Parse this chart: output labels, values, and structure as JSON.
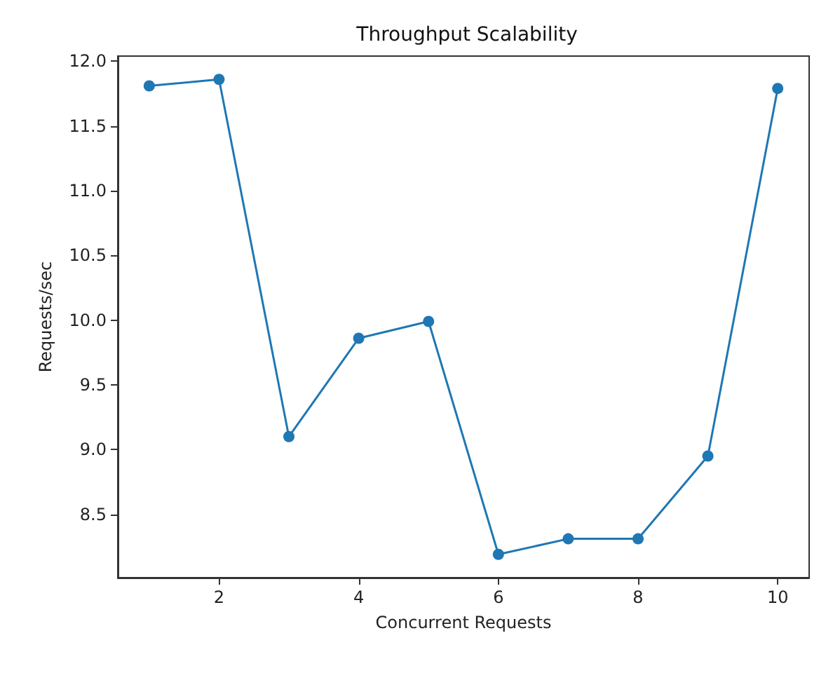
{
  "chart_data": {
    "type": "line",
    "title": "Throughput Scalability",
    "xlabel": "Concurrent Requests",
    "ylabel": "Requests/sec",
    "x": [
      1,
      2,
      3,
      4,
      5,
      6,
      7,
      8,
      9,
      10
    ],
    "series": [
      {
        "color": "#1f77b4",
        "values": [
          11.81,
          11.86,
          9.1,
          9.86,
          9.99,
          8.19,
          8.31,
          8.31,
          8.95,
          11.79
        ]
      }
    ],
    "xlim": [
      0.55,
      10.45
    ],
    "xticks": [
      2,
      4,
      6,
      8,
      10
    ],
    "ylim": [
      8.01,
      12.04
    ],
    "yticks": [
      8.5,
      {
        "value": 9,
        "label": "9.0"
      },
      9.5,
      {
        "value": 10,
        "label": "10.0"
      },
      10.5,
      {
        "value": 11,
        "label": "11.0"
      },
      11.5,
      {
        "value": 12,
        "label": "12.0"
      }
    ],
    "grid": false,
    "marker": "circle",
    "line_style": "solid"
  }
}
